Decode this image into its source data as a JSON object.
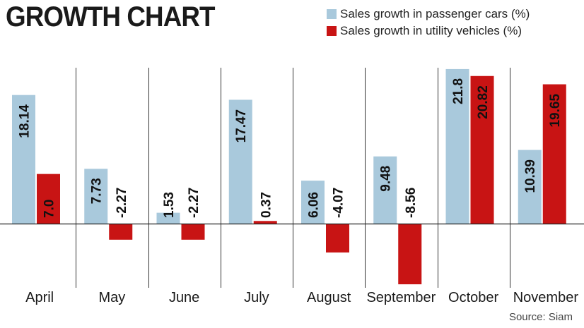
{
  "chart_data": {
    "type": "bar",
    "title": "GROWTH CHART",
    "categories": [
      "April",
      "May",
      "June",
      "July",
      "August",
      "September",
      "October",
      "November"
    ],
    "series": [
      {
        "name": "Sales growth in passenger cars (%)",
        "color": "#a9c9dc",
        "values": [
          18.14,
          7.73,
          1.53,
          17.47,
          6.06,
          9.48,
          21.8,
          10.39
        ],
        "labels": [
          "18.14",
          "7.73",
          "1.53",
          "17.47",
          "6.06",
          "9.48",
          "21.8",
          "10.39"
        ]
      },
      {
        "name": "Sales growth in utility vehicles  (%)",
        "color": "#c81414",
        "values": [
          7.0,
          -2.27,
          -2.27,
          0.37,
          -4.07,
          -8.56,
          20.82,
          19.65
        ],
        "labels": [
          "7.0",
          "-2.27",
          "-2.27",
          "0.37",
          "-4.07",
          "-8.56",
          "20.82",
          "19.65"
        ]
      }
    ],
    "ylim": [
      -9,
      22
    ],
    "xlabel": "",
    "ylabel": "",
    "legend_position": "top-right",
    "source": "Source: Siam"
  }
}
